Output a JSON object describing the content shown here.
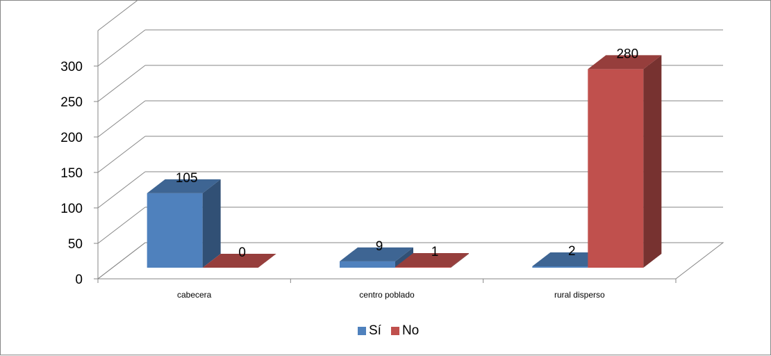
{
  "chart_data": {
    "type": "bar",
    "categories": [
      "cabecera",
      "centro poblado",
      "rural disperso"
    ],
    "series": [
      {
        "name": "Sí",
        "values": [
          105,
          9,
          2
        ],
        "color": "#4F81BD"
      },
      {
        "name": "No",
        "values": [
          0,
          1,
          280
        ],
        "color": "#C0504D"
      }
    ],
    "ylim": [
      0,
      300
    ],
    "yticks": [
      0,
      50,
      100,
      150,
      200,
      250,
      300
    ],
    "grid": true,
    "legend_position": "bottom",
    "style": "3d-clustered-column"
  }
}
